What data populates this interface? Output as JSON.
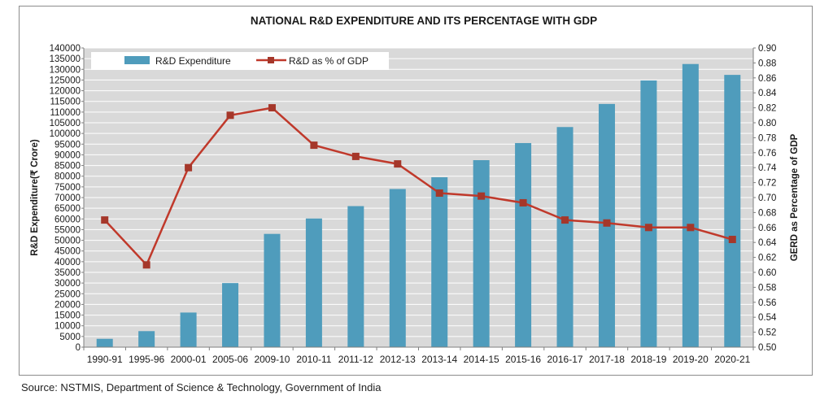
{
  "source_note": "Source: NSTMIS, Department of Science & Technology, Government of India",
  "colors": {
    "bar": "#4f9cbc",
    "line": "#c0392b",
    "marker": "#a5372a",
    "plot_bg": "#d9d9d9",
    "grid": "#ffffff"
  },
  "chart_data": {
    "type": "bar",
    "title": "NATIONAL R&D EXPENDITURE AND ITS PERCENTAGE WITH GDP",
    "ylabel": "R&D Expenditure(₹ Crore)",
    "y2label": "GERD as Percentage of GDP",
    "xlabel": "",
    "legend_position": "top-left",
    "categories": [
      "1990-91",
      "1995-96",
      "2000-01",
      "2005-06",
      "2009-10",
      "2010-11",
      "2011-12",
      "2012-13",
      "2013-14",
      "2014-15",
      "2015-16",
      "2016-17",
      "2017-18",
      "2018-19",
      "2019-20",
      "2020-21"
    ],
    "ylim": [
      0,
      140000
    ],
    "yticks": [
      "0",
      "5000",
      "10000",
      "15000",
      "20000",
      "25000",
      "30000",
      "35000",
      "40000",
      "45000",
      "50000",
      "55000",
      "60000",
      "65000",
      "70000",
      "75000",
      "80000",
      "85000",
      "90000",
      "95000",
      "100000",
      "105000",
      "110000",
      "115000",
      "120000",
      "125000",
      "130000",
      "135000",
      "140000"
    ],
    "y2lim": [
      0.5,
      0.9
    ],
    "y2ticks": [
      "0.50",
      "0.52",
      "0.54",
      "0.56",
      "0.58",
      "0.60",
      "0.62",
      "0.64",
      "0.66",
      "0.68",
      "0.70",
      "0.72",
      "0.74",
      "0.76",
      "0.78",
      "0.80",
      "0.82",
      "0.84",
      "0.86",
      "0.88",
      "0.90"
    ],
    "series": [
      {
        "name": "R&D Expenditure",
        "type": "bar",
        "axis": "left",
        "values": [
          3900,
          7500,
          16200,
          30000,
          53000,
          60200,
          66000,
          74000,
          79500,
          87500,
          95500,
          103000,
          113800,
          124800,
          132500,
          127400
        ]
      },
      {
        "name": "R&D as % of GDP",
        "type": "line",
        "axis": "right",
        "values": [
          0.67,
          0.61,
          0.74,
          0.81,
          0.82,
          0.77,
          0.755,
          0.745,
          0.706,
          0.702,
          0.693,
          0.67,
          0.666,
          0.66,
          0.66,
          0.644
        ]
      }
    ]
  }
}
